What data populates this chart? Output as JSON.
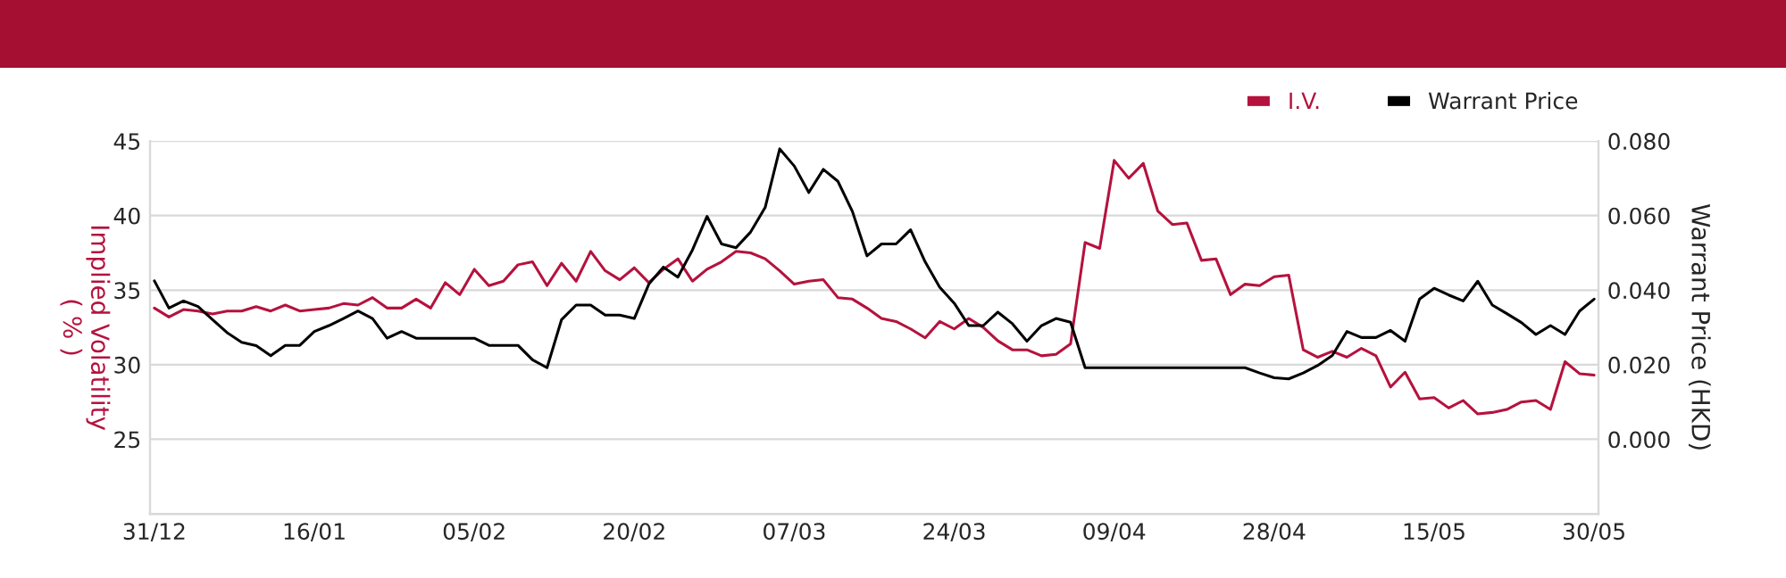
{
  "chart_data": {
    "type": "line",
    "ylabel": "Implied Volatility\n( % )",
    "y2label": "Warrant Price (HKD)",
    "categories": [
      "31/12",
      null,
      null,
      null,
      null,
      null,
      null,
      null,
      null,
      null,
      null,
      "16/01",
      null,
      null,
      null,
      null,
      null,
      null,
      null,
      null,
      null,
      null,
      "05/02",
      null,
      null,
      null,
      null,
      null,
      null,
      null,
      null,
      null,
      null,
      "20/02",
      null,
      null,
      null,
      null,
      null,
      null,
      null,
      null,
      null,
      null,
      "07/03",
      null,
      null,
      null,
      null,
      null,
      null,
      null,
      null,
      null,
      null,
      "24/03",
      null,
      null,
      null,
      null,
      null,
      null,
      null,
      null,
      null,
      null,
      "09/04",
      null,
      null,
      null,
      null,
      null,
      null,
      null,
      null,
      null,
      null,
      "28/04",
      null,
      null,
      null,
      null,
      null,
      null,
      null,
      null,
      null,
      null,
      "15/05",
      null,
      null,
      null,
      null,
      null,
      null,
      null,
      null,
      null,
      null,
      "30/05"
    ],
    "series": [
      {
        "name": "I.V.",
        "color": "#b5123e",
        "values": [
          33.8,
          33.2,
          33.7,
          33.6,
          33.4,
          33.6,
          33.6,
          33.9,
          33.6,
          34.0,
          33.6,
          33.7,
          33.8,
          34.1,
          34.0,
          34.5,
          33.8,
          33.8,
          34.4,
          33.8,
          35.5,
          34.7,
          36.4,
          35.3,
          35.6,
          36.7,
          36.9,
          35.3,
          36.8,
          35.6,
          37.6,
          36.3,
          35.7,
          36.5,
          35.5,
          36.4,
          37.1,
          35.6,
          36.4,
          36.9,
          37.6,
          37.5,
          37.1,
          36.3,
          35.4,
          35.6,
          35.7,
          34.5,
          34.4,
          33.8,
          33.1,
          32.9,
          32.4,
          31.8,
          32.9,
          32.4,
          33.1,
          32.5,
          31.6,
          31.0,
          31.0,
          30.6,
          30.7,
          31.4,
          38.2,
          37.8,
          43.7,
          42.5,
          43.5,
          40.3,
          39.4,
          39.5,
          37.0,
          37.1,
          34.7,
          35.4,
          35.3,
          35.9,
          36.0,
          31.0,
          30.5,
          30.9,
          30.5,
          31.1,
          30.6,
          28.5,
          29.5,
          27.7,
          27.8,
          27.1,
          27.6,
          26.7,
          26.8,
          27.0,
          27.5,
          27.6,
          27.0,
          30.2,
          29.4,
          29.3
        ]
      },
      {
        "name": "Warrant Price",
        "color": "#000000",
        "axis": "y2",
        "values": [
          0.0425,
          0.0352,
          0.0371,
          0.0356,
          0.0321,
          0.0286,
          0.026,
          0.0251,
          0.0224,
          0.0252,
          0.0252,
          0.0289,
          0.0305,
          0.0324,
          0.0344,
          0.0324,
          0.0271,
          0.0289,
          0.0271,
          0.0271,
          0.0271,
          0.0271,
          0.0271,
          0.0252,
          0.0252,
          0.0252,
          0.0213,
          0.0192,
          0.0321,
          0.036,
          0.036,
          0.0333,
          0.0333,
          0.0324,
          0.0416,
          0.0462,
          0.0435,
          0.0508,
          0.0598,
          0.0524,
          0.0514,
          0.0556,
          0.0622,
          0.0779,
          0.0733,
          0.0662,
          0.0724,
          0.0692,
          0.0611,
          0.0492,
          0.0524,
          0.0524,
          0.0562,
          0.0476,
          0.0408,
          0.0365,
          0.0305,
          0.0305,
          0.0341,
          0.031,
          0.0263,
          0.0305,
          0.0324,
          0.0314,
          0.0192,
          0.0192,
          0.0192,
          0.0192,
          0.0192,
          0.0192,
          0.0192,
          0.0192,
          0.0192,
          0.0192,
          0.0192,
          0.0192,
          0.0178,
          0.0165,
          0.0162,
          0.0178,
          0.0198,
          0.0225,
          0.0289,
          0.0273,
          0.0273,
          0.0292,
          0.0263,
          0.0376,
          0.0405,
          0.0387,
          0.0371,
          0.0424,
          0.036,
          0.0337,
          0.0313,
          0.0281,
          0.0305,
          0.0281,
          0.0344,
          0.0376
        ]
      }
    ],
    "ylim": [
      20,
      45
    ],
    "yticks": [
      25,
      30,
      35,
      40,
      45
    ],
    "y2lim": [
      -0.02,
      0.08
    ],
    "y2ticks": [
      {
        "value": 0,
        "label": "0.000"
      },
      {
        "value": 0.02,
        "label": "0.020"
      },
      {
        "value": 0.04,
        "label": "0.040"
      },
      {
        "value": 0.06,
        "label": "0.060"
      },
      {
        "value": 0.08,
        "label": "0.080"
      }
    ],
    "grid": "y",
    "legend": "top right",
    "marker": "none",
    "line_style": "solid"
  }
}
